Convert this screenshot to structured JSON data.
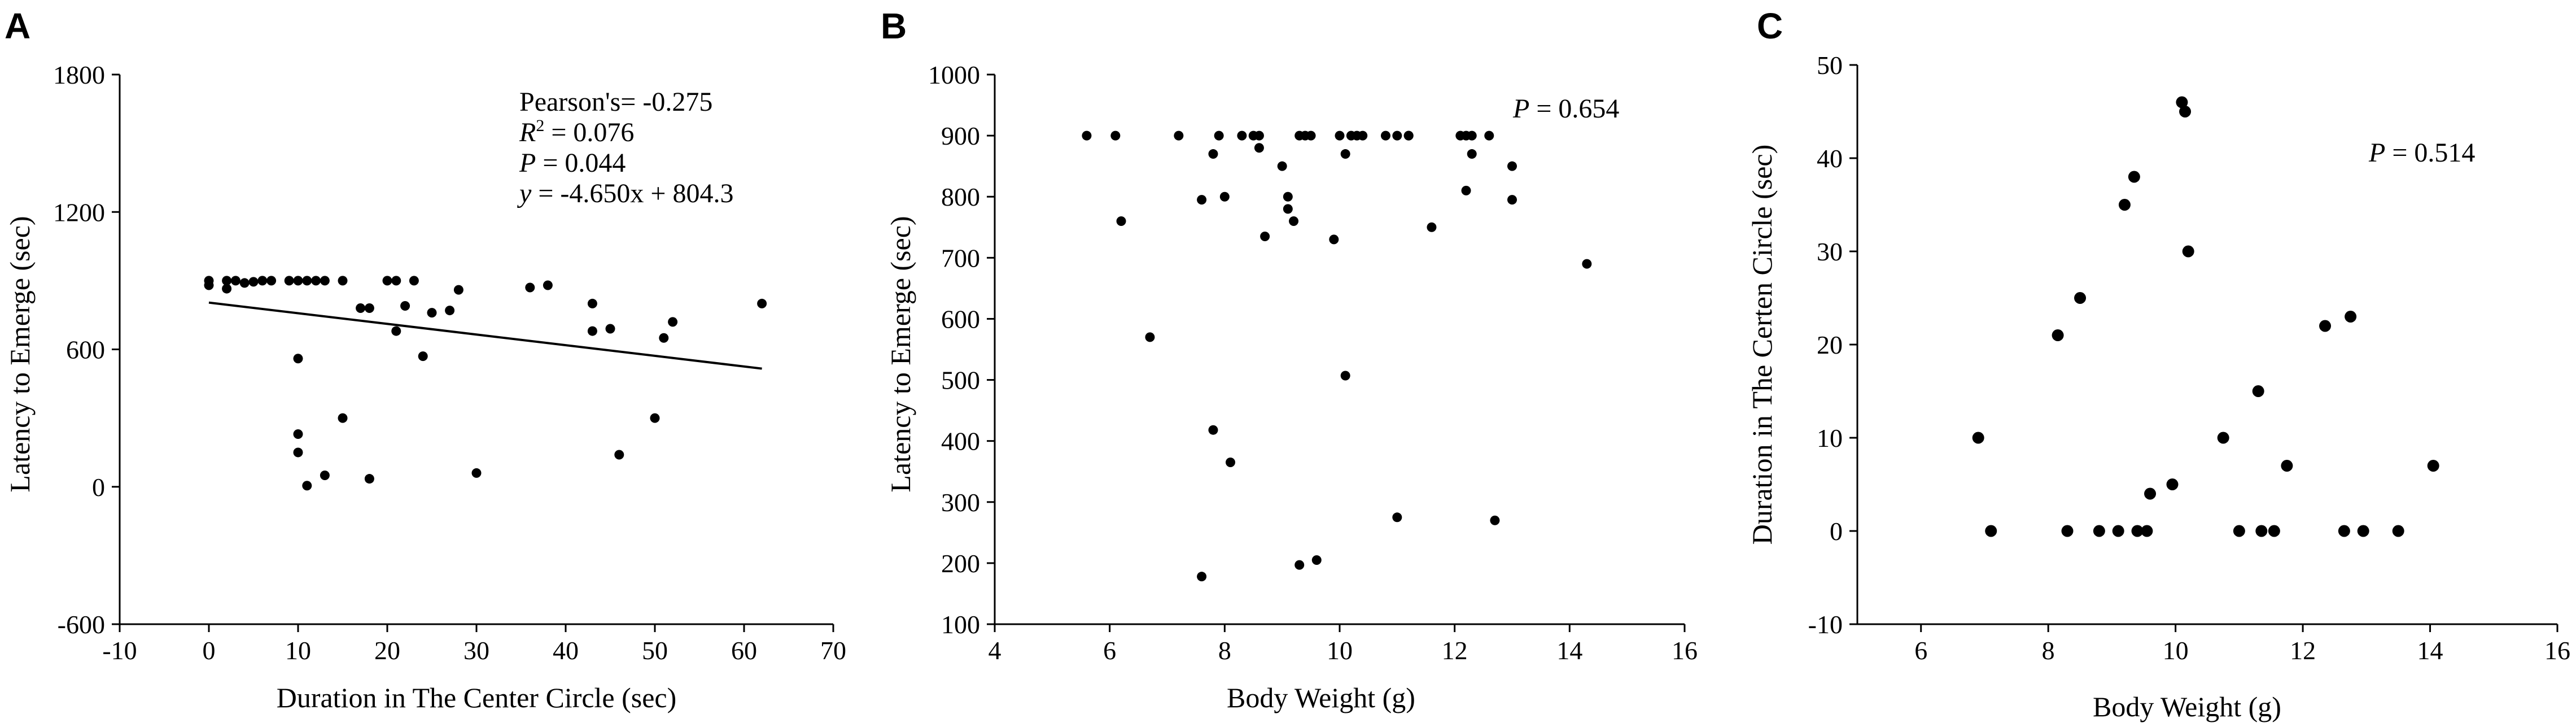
{
  "figure": {
    "panels": [
      {
        "letter": "A"
      },
      {
        "letter": "B"
      },
      {
        "letter": "C"
      }
    ]
  },
  "chart_data": [
    {
      "type": "scatter",
      "panel": "A",
      "xlabel": "Duration in The Center Circle (sec)",
      "ylabel": "Latency to Emerge (sec)",
      "xlim": [
        -10,
        70
      ],
      "ylim": [
        -600,
        1800
      ],
      "xticks": [
        -10,
        0,
        10,
        20,
        30,
        40,
        50,
        60,
        70
      ],
      "yticks": [
        -600,
        0,
        600,
        1200,
        1800
      ],
      "annotation": {
        "pearson_label": "Pearson's",
        "pearson_value": "= -0.275",
        "r2_label": "R",
        "r2_sup": "2",
        "r2_value": " = 0.076",
        "p_label": "P",
        "p_value": " = 0.044",
        "eq_label": "y",
        "eq_value": " = -4.650x + 804.3"
      },
      "regression": {
        "slope": -4.65,
        "intercept": 804.3,
        "x_range": [
          0,
          62
        ]
      },
      "points": [
        [
          0,
          900
        ],
        [
          0,
          880
        ],
        [
          2,
          900
        ],
        [
          2,
          865
        ],
        [
          3,
          900
        ],
        [
          4,
          890
        ],
        [
          5,
          895
        ],
        [
          6,
          900
        ],
        [
          7,
          900
        ],
        [
          9,
          900
        ],
        [
          10,
          900
        ],
        [
          11,
          900
        ],
        [
          12,
          900
        ],
        [
          13,
          900
        ],
        [
          15,
          900
        ],
        [
          17,
          780
        ],
        [
          18,
          780
        ],
        [
          20,
          900
        ],
        [
          21,
          900
        ],
        [
          21,
          680
        ],
        [
          22,
          790
        ],
        [
          23,
          900
        ],
        [
          24,
          570
        ],
        [
          25,
          760
        ],
        [
          27,
          770
        ],
        [
          28,
          860
        ],
        [
          36,
          870
        ],
        [
          38,
          880
        ],
        [
          43,
          800
        ],
        [
          43,
          680
        ],
        [
          45,
          690
        ],
        [
          51,
          650
        ],
        [
          52,
          720
        ],
        [
          62,
          800
        ],
        [
          10,
          560
        ],
        [
          10,
          230
        ],
        [
          10,
          150
        ],
        [
          11,
          5
        ],
        [
          13,
          50
        ],
        [
          15,
          300
        ],
        [
          18,
          35
        ],
        [
          30,
          60
        ],
        [
          46,
          140
        ],
        [
          50,
          300
        ]
      ]
    },
    {
      "type": "scatter",
      "panel": "B",
      "xlabel": "Body Weight (g)",
      "ylabel": "Latency to Emerge (sec)",
      "xlim": [
        4,
        16
      ],
      "ylim": [
        100,
        1000
      ],
      "xticks": [
        4,
        6,
        8,
        10,
        12,
        14,
        16
      ],
      "yticks": [
        100,
        200,
        300,
        400,
        500,
        600,
        700,
        800,
        900,
        1000
      ],
      "annotation": {
        "p_label": "P",
        "p_value": " = 0.654"
      },
      "points": [
        [
          5.6,
          900
        ],
        [
          6.1,
          900
        ],
        [
          6.2,
          760
        ],
        [
          6.7,
          570
        ],
        [
          7.2,
          900
        ],
        [
          7.6,
          795
        ],
        [
          7.6,
          178
        ],
        [
          7.8,
          870
        ],
        [
          7.8,
          418
        ],
        [
          7.9,
          900
        ],
        [
          8.0,
          800
        ],
        [
          8.1,
          365
        ],
        [
          8.3,
          900
        ],
        [
          8.5,
          900
        ],
        [
          8.6,
          900
        ],
        [
          8.6,
          880
        ],
        [
          8.7,
          735
        ],
        [
          9.0,
          850
        ],
        [
          9.1,
          800
        ],
        [
          9.1,
          780
        ],
        [
          9.2,
          760
        ],
        [
          9.3,
          900
        ],
        [
          9.3,
          197
        ],
        [
          9.4,
          900
        ],
        [
          9.5,
          900
        ],
        [
          9.6,
          205
        ],
        [
          9.9,
          730
        ],
        [
          10.0,
          900
        ],
        [
          10.1,
          870
        ],
        [
          10.1,
          507
        ],
        [
          10.2,
          900
        ],
        [
          10.3,
          900
        ],
        [
          10.4,
          900
        ],
        [
          10.8,
          900
        ],
        [
          11.0,
          900
        ],
        [
          11.0,
          275
        ],
        [
          11.2,
          900
        ],
        [
          11.2,
          900
        ],
        [
          11.6,
          750
        ],
        [
          12.1,
          900
        ],
        [
          12.2,
          900
        ],
        [
          12.2,
          810
        ],
        [
          12.3,
          870
        ],
        [
          12.3,
          900
        ],
        [
          12.6,
          900
        ],
        [
          12.7,
          270
        ],
        [
          13.0,
          850
        ],
        [
          13.0,
          795
        ],
        [
          14.3,
          690
        ]
      ]
    },
    {
      "type": "scatter",
      "panel": "C",
      "xlabel": "Body Weight (g)",
      "ylabel": "Duration in The Certen Circle (sec)",
      "xlim": [
        5,
        16
      ],
      "ylim": [
        -10,
        50
      ],
      "xticks": [
        6,
        8,
        10,
        12,
        14,
        16
      ],
      "yticks": [
        -10,
        0,
        10,
        20,
        30,
        40,
        50
      ],
      "annotation": {
        "p_label": "P",
        "p_value": " = 0.514"
      },
      "points": [
        [
          6.9,
          10
        ],
        [
          7.1,
          0
        ],
        [
          8.15,
          21
        ],
        [
          8.3,
          0
        ],
        [
          8.5,
          25
        ],
        [
          8.8,
          0
        ],
        [
          9.1,
          0
        ],
        [
          9.2,
          35
        ],
        [
          9.35,
          38
        ],
        [
          9.4,
          0
        ],
        [
          9.55,
          0
        ],
        [
          9.6,
          4
        ],
        [
          9.95,
          5
        ],
        [
          10.1,
          46
        ],
        [
          10.15,
          45
        ],
        [
          10.2,
          30
        ],
        [
          10.75,
          10
        ],
        [
          11.0,
          0
        ],
        [
          11.3,
          15
        ],
        [
          11.35,
          0
        ],
        [
          11.55,
          0
        ],
        [
          11.75,
          7
        ],
        [
          12.35,
          22
        ],
        [
          12.65,
          0
        ],
        [
          12.75,
          23
        ],
        [
          12.95,
          0
        ],
        [
          13.5,
          0
        ],
        [
          14.05,
          7
        ]
      ]
    }
  ]
}
